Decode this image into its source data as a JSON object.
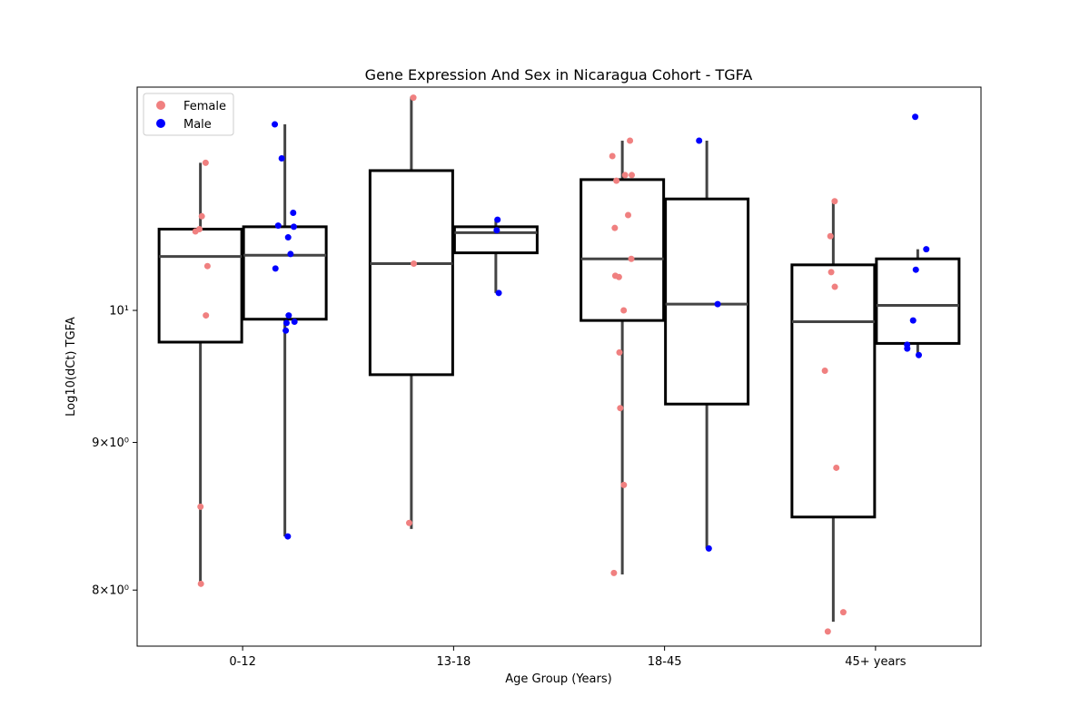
{
  "chart_data": {
    "type": "box",
    "title": "Gene Expression And Sex in Nicaragua Cohort - TGFA",
    "xlabel": "Age Group (Years)",
    "ylabel": "Log10(dCt) TGFA",
    "categories": [
      "0-12",
      "13-18",
      "18-45",
      "45+ years"
    ],
    "y_scale": "log",
    "ylim": [
      7.65,
      11.95
    ],
    "y_ticks": [
      {
        "value": 8,
        "label": "8×10⁰"
      },
      {
        "value": 9,
        "label": "9×10⁰"
      },
      {
        "value": 10,
        "label": "10¹"
      }
    ],
    "legend": {
      "position": "top-left",
      "entries": [
        {
          "label": "Female",
          "color": "#f08080"
        },
        {
          "label": "Male",
          "color": "#0000ff"
        }
      ]
    },
    "series": [
      {
        "name": "Female",
        "color": "#f08080",
        "boxes": [
          {
            "category": "0-12",
            "whisker_low": 8.04,
            "q1": 9.75,
            "median": 10.44,
            "q3": 10.67,
            "whisker_high": 11.25
          },
          {
            "category": "13-18",
            "whisker_low": 8.4,
            "q1": 9.5,
            "median": 10.38,
            "q3": 11.18,
            "whisker_high": 11.86
          },
          {
            "category": "18-45",
            "whisker_low": 8.1,
            "q1": 9.92,
            "median": 10.42,
            "q3": 11.1,
            "whisker_high": 11.45
          },
          {
            "category": "45+ years",
            "whisker_low": 7.8,
            "q1": 8.48,
            "median": 9.91,
            "q3": 10.37,
            "whisker_high": 10.91
          }
        ],
        "points": [
          {
            "category": "0-12",
            "y": [
              11.25,
              10.78,
              10.67,
              10.65,
              10.36,
              9.96,
              8.55,
              8.04
            ]
          },
          {
            "category": "13-18",
            "y": [
              11.85,
              10.38,
              8.44
            ]
          },
          {
            "category": "18-45",
            "y": [
              11.45,
              11.31,
              11.14,
              11.14,
              11.09,
              10.79,
              10.68,
              10.42,
              10.28,
              10.27,
              10.0,
              9.67,
              9.25,
              8.7,
              8.11
            ]
          },
          {
            "category": "45+ years",
            "y": [
              10.91,
              10.61,
              10.31,
              10.19,
              9.53,
              8.82,
              7.86,
              7.74
            ]
          }
        ]
      },
      {
        "name": "Male",
        "color": "#0000ff",
        "boxes": [
          {
            "category": "0-12",
            "whisker_low": 8.35,
            "q1": 9.93,
            "median": 10.45,
            "q3": 10.69,
            "whisker_high": 11.6
          },
          {
            "category": "13-18",
            "whisker_low": 10.14,
            "q1": 10.47,
            "median": 10.64,
            "q3": 10.69,
            "whisker_high": 10.75
          },
          {
            "category": "18-45",
            "whisker_low": 8.27,
            "q1": 9.28,
            "median": 10.05,
            "q3": 10.93,
            "whisker_high": 11.45
          },
          {
            "category": "45+ years",
            "whisker_low": 9.65,
            "q1": 9.74,
            "median": 10.04,
            "q3": 10.42,
            "whisker_high": 10.5
          }
        ],
        "points": [
          {
            "category": "0-12",
            "y": [
              11.6,
              11.29,
              10.81,
              10.7,
              10.69,
              10.6,
              10.46,
              10.34,
              9.96,
              9.91,
              9.9,
              9.84,
              8.35
            ]
          },
          {
            "category": "13-18",
            "y": [
              10.75,
              10.66,
              10.14
            ]
          },
          {
            "category": "18-45",
            "y": [
              11.45,
              10.05,
              8.27
            ]
          },
          {
            "category": "45+ years",
            "y": [
              11.67,
              10.5,
              10.33,
              9.92,
              9.73,
              9.7,
              9.65
            ]
          }
        ]
      }
    ]
  }
}
